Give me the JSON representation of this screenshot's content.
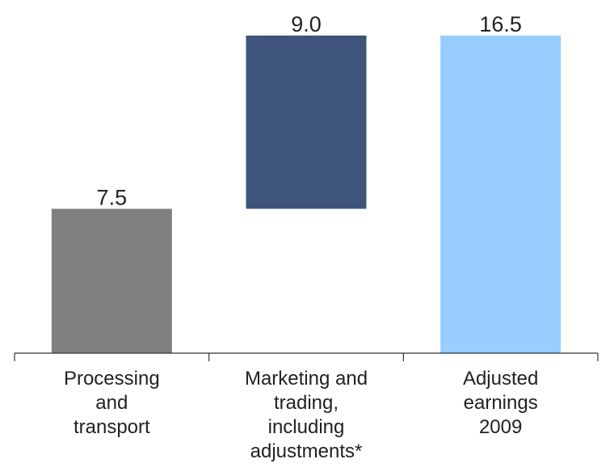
{
  "chart_data": {
    "type": "waterfall",
    "categories": [
      "Processing\nand\ntransport",
      "Marketing and\ntrading,\nincluding\nadjustments*",
      "Adjusted\nearnings\n2009"
    ],
    "values": [
      7.5,
      9.0,
      16.5
    ],
    "value_labels": [
      "7.5",
      "9.0",
      "16.5"
    ],
    "is_total": [
      false,
      false,
      true
    ],
    "colors": [
      "#808080",
      "#3f547a",
      "#99ccff"
    ]
  }
}
